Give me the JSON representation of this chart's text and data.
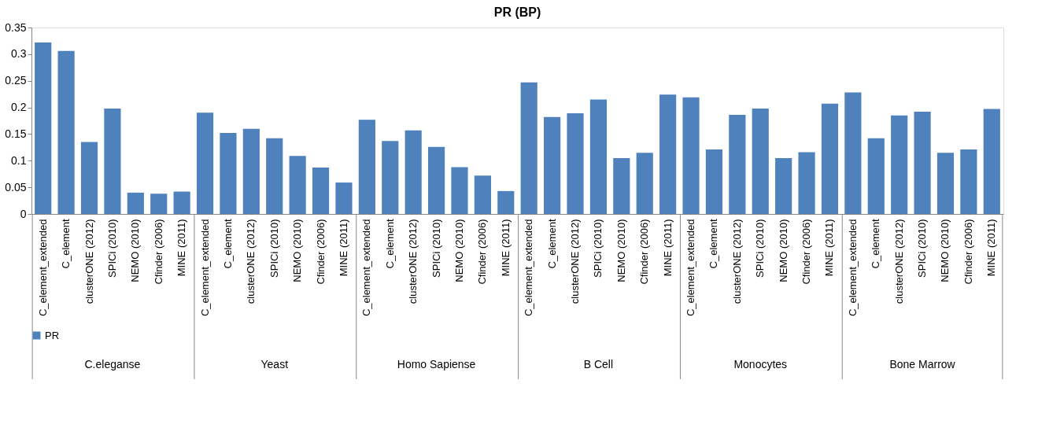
{
  "chart_data": {
    "type": "bar",
    "title": "PR (BP)",
    "categories": [
      "C_element_extended",
      "C_element",
      "clusterONE (2012)",
      "SPICi (2010)",
      "NEMO (2010)",
      "Cfinder (2006)",
      "MINE (2011)",
      "C_element_extended",
      "C_element",
      "clusterONE (2012)",
      "SPICi (2010)",
      "NEMO (2010)",
      "Cfinder (2006)",
      "MINE (2011)",
      "C_element_extended",
      "C_element",
      "clusterONE (2012)",
      "SPICi (2010)",
      "NEMO (2010)",
      "Cfinder (2006)",
      "MINE (2011)",
      "C_element_extended",
      "C_element",
      "clusterONE (2012)",
      "SPICi (2010)",
      "NEMO (2010)",
      "Cfinder (2006)",
      "MINE (2011)",
      "C_element_extended",
      "C_element",
      "clusterONE (2012)",
      "SPICi (2010)",
      "NEMO (2010)",
      "Cfinder (2006)",
      "MINE (2011)",
      "C_element_extended",
      "C_element",
      "clusterONE (2012)",
      "SPICi (2010)",
      "NEMO (2010)",
      "Cfinder (2006)",
      "MINE (2011)"
    ],
    "annotations": [
      "C.eleganse",
      "Yeast",
      "Homo Sapiense",
      "B Cell",
      "Monocytes",
      "Bone Marrow"
    ],
    "series": [
      {
        "name": "PR",
        "color": "#4f81bd",
        "values": [
          0.322,
          0.306,
          0.135,
          0.198,
          0.04,
          0.038,
          0.042,
          0.19,
          0.152,
          0.16,
          0.142,
          0.109,
          0.087,
          0.059,
          0.177,
          0.137,
          0.157,
          0.126,
          0.088,
          0.072,
          0.043,
          0.247,
          0.182,
          0.189,
          0.215,
          0.105,
          0.115,
          0.224,
          0.219,
          0.121,
          0.186,
          0.198,
          0.105,
          0.116,
          0.207,
          0.228,
          0.142,
          0.185,
          0.192,
          0.115,
          0.121,
          0.197
        ]
      }
    ],
    "ylim": [
      0,
      0.35
    ],
    "yticks": [
      0,
      0.05,
      0.1,
      0.15,
      0.2,
      0.25,
      0.3,
      0.35
    ],
    "grid": false,
    "legend": "bottom"
  }
}
